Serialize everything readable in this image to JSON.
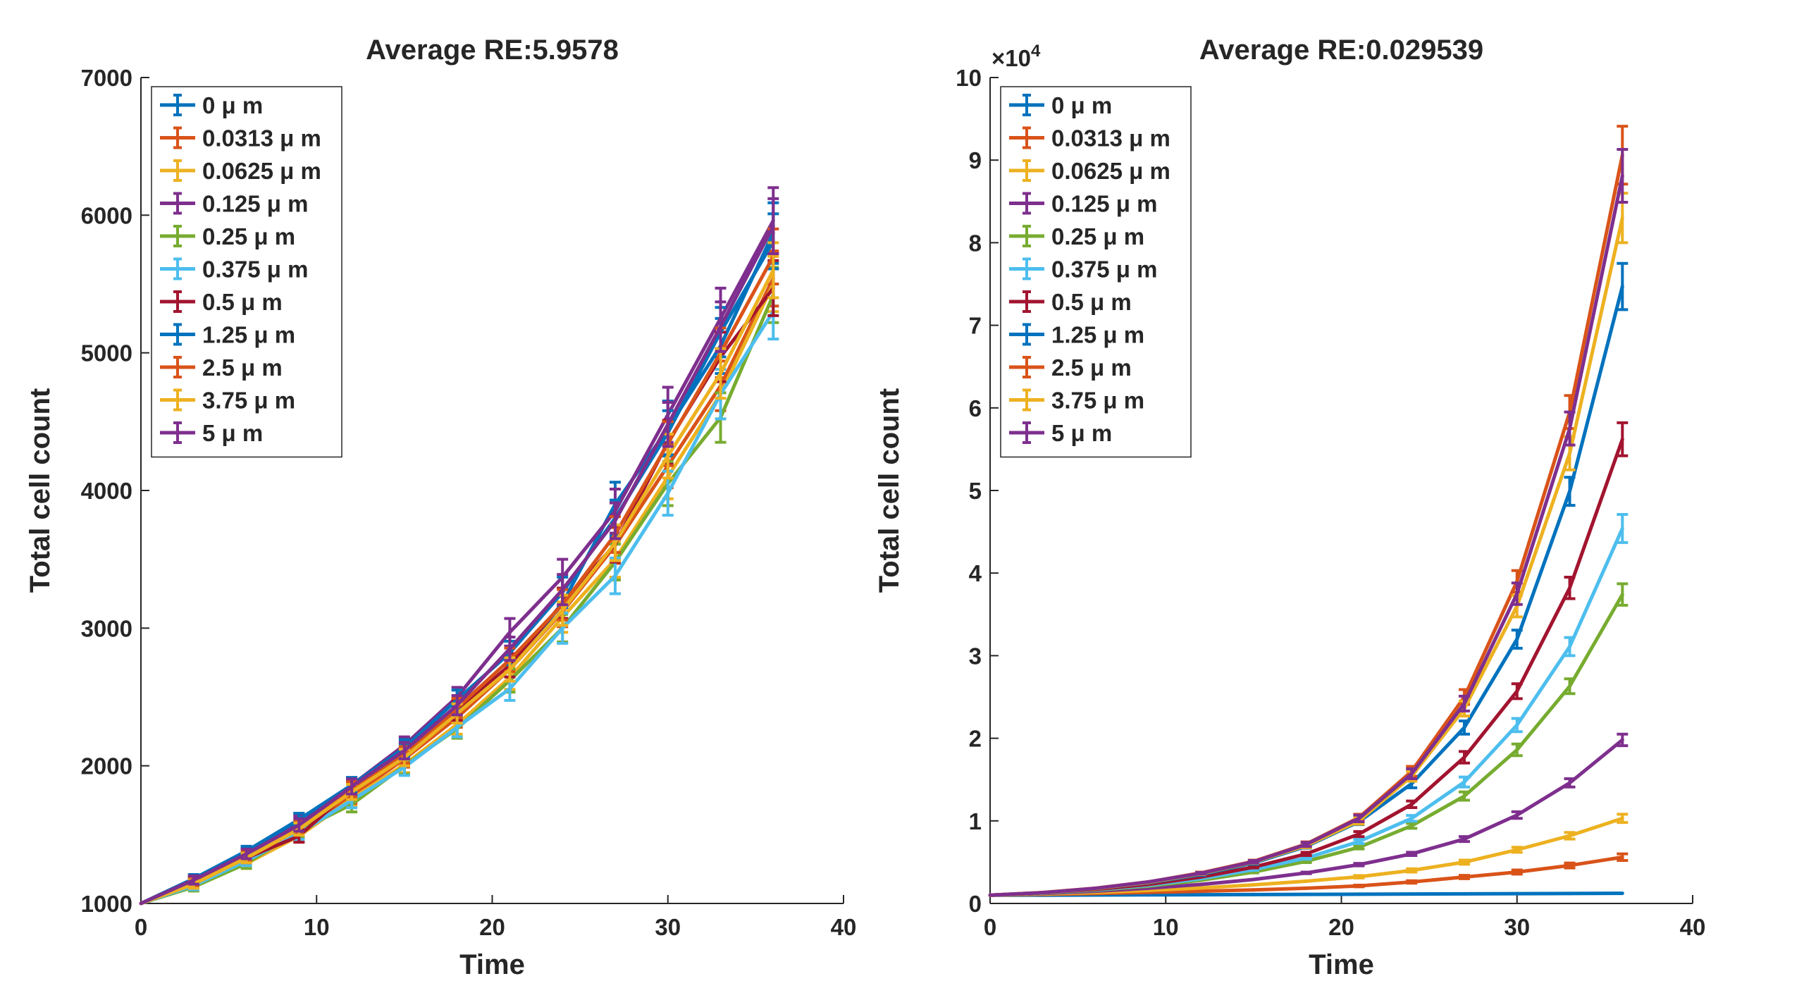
{
  "chart_data": [
    {
      "type": "line",
      "title": "Average RE:5.9578",
      "xlabel": "Time",
      "ylabel": "Total cell count",
      "xlim": [
        0,
        40
      ],
      "ylim": [
        1000,
        7000
      ],
      "xticks": [
        "0",
        "10",
        "20",
        "30",
        "40"
      ],
      "yticks": [
        "1000",
        "2000",
        "3000",
        "4000",
        "5000",
        "6000",
        "7000"
      ],
      "y_exponent": "",
      "legend_position": "top-left",
      "grid": false,
      "x": [
        0,
        3,
        6,
        9,
        12,
        15,
        18,
        21,
        24,
        27,
        30,
        33,
        36
      ],
      "series": [
        {
          "name": "0 μ m",
          "color": "#0072BD",
          "values": [
            1000,
            1180,
            1380,
            1610,
            1840,
            2100,
            2420,
            2700,
            3180,
            3900,
            4450,
            5050,
            5870
          ],
          "errors": [
            0,
            30,
            35,
            45,
            55,
            60,
            70,
            85,
            110,
            160,
            200,
            200,
            220
          ]
        },
        {
          "name": "0.0313 μ m",
          "color": "#D95319",
          "values": [
            1000,
            1150,
            1320,
            1520,
            1780,
            2050,
            2350,
            2700,
            3120,
            3600,
            4180,
            4760,
            5540
          ],
          "errors": [
            0,
            30,
            35,
            45,
            55,
            60,
            70,
            85,
            110,
            130,
            160,
            180,
            200
          ]
        },
        {
          "name": "0.0625 μ m",
          "color": "#EDB120",
          "values": [
            1000,
            1130,
            1290,
            1490,
            1760,
            2010,
            2300,
            2640,
            3080,
            3500,
            4100,
            4700,
            5500
          ],
          "errors": [
            0,
            30,
            35,
            45,
            55,
            60,
            70,
            85,
            110,
            130,
            160,
            180,
            200
          ]
        },
        {
          "name": "0.125 μ m",
          "color": "#7E2F8E",
          "values": [
            1000,
            1160,
            1370,
            1590,
            1860,
            2150,
            2500,
            2970,
            3370,
            3850,
            4550,
            5250,
            5960
          ],
          "errors": [
            0,
            30,
            35,
            45,
            55,
            60,
            70,
            100,
            130,
            160,
            200,
            220,
            240
          ]
        },
        {
          "name": "0.25 μ m",
          "color": "#77AC30",
          "values": [
            1000,
            1120,
            1290,
            1530,
            1720,
            2000,
            2270,
            2620,
            3000,
            3480,
            4050,
            4530,
            5420
          ],
          "errors": [
            0,
            30,
            35,
            45,
            55,
            60,
            70,
            85,
            100,
            130,
            160,
            180,
            200
          ]
        },
        {
          "name": "0.375 μ m",
          "color": "#4DBEEE",
          "values": [
            1000,
            1130,
            1310,
            1510,
            1750,
            1990,
            2280,
            2560,
            3000,
            3380,
            3980,
            4700,
            5300
          ],
          "errors": [
            0,
            30,
            35,
            45,
            55,
            60,
            70,
            85,
            110,
            130,
            160,
            180,
            200
          ]
        },
        {
          "name": "0.5 μ m",
          "color": "#A2142F",
          "values": [
            1000,
            1170,
            1330,
            1490,
            1830,
            2070,
            2400,
            2730,
            3180,
            3610,
            4350,
            4970,
            5470
          ],
          "errors": [
            0,
            30,
            35,
            45,
            55,
            60,
            70,
            85,
            110,
            130,
            160,
            180,
            200
          ]
        },
        {
          "name": "1.25 μ m",
          "color": "#0072BD",
          "values": [
            1000,
            1160,
            1370,
            1610,
            1860,
            2130,
            2480,
            2820,
            3260,
            3800,
            4420,
            5150,
            5810
          ],
          "errors": [
            0,
            30,
            35,
            45,
            55,
            60,
            70,
            85,
            110,
            130,
            160,
            180,
            200
          ]
        },
        {
          "name": "2.5 μ m",
          "color": "#D95319",
          "values": [
            1000,
            1160,
            1350,
            1560,
            1830,
            2080,
            2420,
            2770,
            3170,
            3680,
            4340,
            5000,
            5700
          ],
          "errors": [
            0,
            30,
            35,
            45,
            55,
            60,
            70,
            85,
            110,
            130,
            160,
            180,
            200
          ]
        },
        {
          "name": "3.75 μ m",
          "color": "#EDB120",
          "values": [
            1000,
            1140,
            1330,
            1540,
            1810,
            2060,
            2380,
            2700,
            3130,
            3620,
            4250,
            4850,
            5600
          ],
          "errors": [
            0,
            30,
            35,
            45,
            55,
            60,
            70,
            85,
            110,
            130,
            160,
            180,
            200
          ]
        },
        {
          "name": "5 μ m",
          "color": "#7E2F8E",
          "values": [
            1000,
            1170,
            1360,
            1570,
            1850,
            2110,
            2440,
            2850,
            3280,
            3780,
            4480,
            5190,
            5920
          ],
          "errors": [
            0,
            30,
            35,
            45,
            55,
            60,
            70,
            85,
            110,
            130,
            160,
            180,
            200
          ]
        }
      ]
    },
    {
      "type": "line",
      "title": "Average RE:0.029539",
      "xlabel": "Time",
      "ylabel": "Total cell count",
      "xlim": [
        0,
        40
      ],
      "ylim": [
        0,
        100000
      ],
      "xticks": [
        "0",
        "10",
        "20",
        "30",
        "40"
      ],
      "yticks": [
        "0",
        "1",
        "2",
        "3",
        "4",
        "5",
        "6",
        "7",
        "8",
        "9",
        "10"
      ],
      "y_exponent": "10^4",
      "legend_position": "top-left",
      "grid": false,
      "x": [
        0,
        3,
        6,
        9,
        12,
        15,
        18,
        21,
        24,
        27,
        30,
        33,
        36
      ],
      "series": [
        {
          "name": "0 μ m",
          "color": "#0072BD",
          "values": [
            1000,
            1000,
            1020,
            1040,
            1060,
            1080,
            1100,
            1120,
            1140,
            1160,
            1180,
            1200,
            1230
          ],
          "errors": [
            0,
            0,
            0,
            0,
            0,
            0,
            0,
            0,
            0,
            0,
            0,
            0,
            0
          ]
        },
        {
          "name": "0.0313 μ m",
          "color": "#D95319",
          "values": [
            1000,
            1100,
            1210,
            1340,
            1480,
            1640,
            1850,
            2120,
            2600,
            3200,
            3800,
            4600,
            5600
          ],
          "errors": [
            0,
            0,
            0,
            0,
            0,
            0,
            0,
            100,
            150,
            200,
            250,
            300,
            400
          ]
        },
        {
          "name": "0.0625 μ m",
          "color": "#EDB120",
          "values": [
            1000,
            1150,
            1330,
            1580,
            1880,
            2250,
            2700,
            3230,
            4000,
            5000,
            6500,
            8200,
            10300
          ],
          "errors": [
            0,
            0,
            0,
            0,
            0,
            0,
            0,
            150,
            200,
            250,
            300,
            400,
            500
          ]
        },
        {
          "name": "0.125 μ m",
          "color": "#7E2F8E",
          "values": [
            1000,
            1200,
            1480,
            1850,
            2300,
            2900,
            3700,
            4700,
            6000,
            7800,
            10700,
            14600,
            19800
          ],
          "errors": [
            0,
            0,
            0,
            0,
            0,
            0,
            100,
            150,
            200,
            300,
            400,
            500,
            700
          ]
        },
        {
          "name": "0.25 μ m",
          "color": "#77AC30",
          "values": [
            1000,
            1250,
            1600,
            2100,
            2800,
            3800,
            5100,
            6800,
            9400,
            13000,
            18600,
            26300,
            37400
          ],
          "errors": [
            0,
            0,
            0,
            0,
            0,
            100,
            150,
            200,
            300,
            500,
            700,
            900,
            1300
          ]
        },
        {
          "name": "0.375 μ m",
          "color": "#4DBEEE",
          "values": [
            1000,
            1260,
            1640,
            2200,
            3000,
            4100,
            5500,
            7500,
            10300,
            14700,
            21600,
            31100,
            45400
          ],
          "errors": [
            0,
            0,
            0,
            0,
            0,
            100,
            150,
            250,
            350,
            600,
            800,
            1100,
            1700
          ]
        },
        {
          "name": "0.5 μ m",
          "color": "#A2142F",
          "values": [
            1000,
            1280,
            1700,
            2300,
            3200,
            4400,
            6000,
            8400,
            12000,
            17700,
            25700,
            38200,
            56200
          ],
          "errors": [
            0,
            0,
            0,
            0,
            0,
            100,
            200,
            300,
            400,
            700,
            900,
            1300,
            2000
          ]
        },
        {
          "name": "1.25 μ m",
          "color": "#0072BD",
          "values": [
            1000,
            1300,
            1800,
            2500,
            3500,
            4900,
            6900,
            9900,
            14500,
            21300,
            32000,
            49900,
            74700
          ],
          "errors": [
            0,
            0,
            0,
            0,
            100,
            150,
            200,
            350,
            500,
            800,
            1100,
            1700,
            2800
          ]
        },
        {
          "name": "2.5 μ m",
          "color": "#D95319",
          "values": [
            1000,
            1320,
            1850,
            2600,
            3700,
            5100,
            7200,
            10400,
            16000,
            25000,
            39000,
            59500,
            90600
          ],
          "errors": [
            0,
            0,
            0,
            0,
            100,
            150,
            250,
            400,
            600,
            900,
            1300,
            2000,
            3500
          ]
        },
        {
          "name": "3.75 μ m",
          "color": "#EDB120",
          "values": [
            1000,
            1300,
            1800,
            2550,
            3600,
            5000,
            7000,
            10000,
            15400,
            23600,
            36000,
            54500,
            83000
          ],
          "errors": [
            0,
            0,
            0,
            0,
            100,
            150,
            250,
            400,
            600,
            900,
            1300,
            2000,
            3000
          ]
        },
        {
          "name": "5 μ m",
          "color": "#7E2F8E",
          "values": [
            1000,
            1310,
            1830,
            2600,
            3650,
            5050,
            7150,
            10300,
            15700,
            24200,
            37500,
            57500,
            88100
          ],
          "errors": [
            0,
            0,
            0,
            0,
            100,
            150,
            250,
            400,
            600,
            900,
            1300,
            2000,
            3200
          ]
        }
      ]
    }
  ]
}
